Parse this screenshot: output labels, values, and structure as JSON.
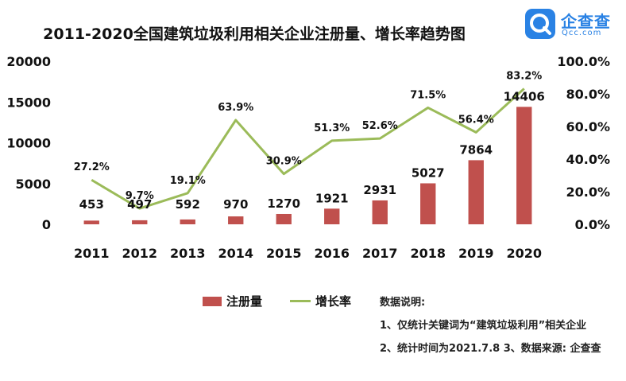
{
  "logo": {
    "name": "企查查",
    "url": "Qcc.com"
  },
  "chart_data": {
    "type": "bar+line",
    "title": "2011-2020全国建筑垃圾利用相关企业注册量、增长率趋势图",
    "categories": [
      "2011",
      "2012",
      "2013",
      "2014",
      "2015",
      "2016",
      "2017",
      "2018",
      "2019",
      "2020"
    ],
    "series": [
      {
        "name": "注册量",
        "type": "bar",
        "axis": "left",
        "color": "#c0504d",
        "values": [
          453,
          497,
          592,
          970,
          1270,
          1921,
          2931,
          5027,
          7864,
          14406
        ],
        "labels": [
          "453",
          "497",
          "592",
          "970",
          "1270",
          "1921",
          "2931",
          "5027",
          "7864",
          "14406"
        ]
      },
      {
        "name": "增长率",
        "type": "line",
        "axis": "right",
        "color": "#9bbb59",
        "values": [
          27.2,
          9.7,
          19.1,
          63.9,
          30.9,
          51.3,
          52.6,
          71.5,
          56.4,
          83.2
        ],
        "labels": [
          "27.2%",
          "9.7%",
          "19.1%",
          "63.9%",
          "30.9%",
          "51.3%",
          "52.6%",
          "71.5%",
          "56.4%",
          "83.2%"
        ]
      }
    ],
    "left_axis": {
      "ylim": [
        0,
        20000
      ],
      "ticks": [
        "20000",
        "15000",
        "10000",
        "5000",
        "0"
      ]
    },
    "right_axis": {
      "ylim": [
        0,
        100
      ],
      "ticks": [
        "100.0%",
        "80.0%",
        "60.0%",
        "40.0%",
        "20.0%",
        "0.0%"
      ]
    },
    "grid": false,
    "legend": "bottom-center"
  },
  "notes": {
    "heading": "数据说明:",
    "line1": "1、仅统计关键词为“建筑垃圾利用”相关企业",
    "line2": "2、统计时间为2021.7.8 3、数据来源: 企查查"
  }
}
